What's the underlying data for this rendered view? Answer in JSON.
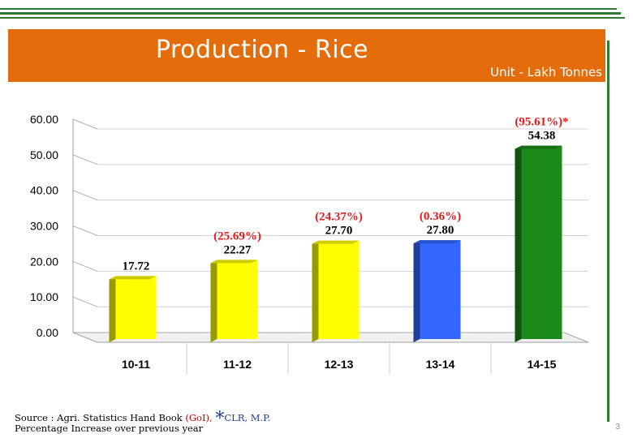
{
  "header": {
    "title": "Production - Rice",
    "unit": "Unit - Lakh Tonnes"
  },
  "chart_data": {
    "type": "bar",
    "categories": [
      "10-11",
      "11-12",
      "12-13",
      "13-14",
      "14-15"
    ],
    "values": [
      17.72,
      22.27,
      27.7,
      27.8,
      54.38
    ],
    "value_labels": [
      "17.72",
      "22.27",
      "27.70",
      "27.80",
      "54.38"
    ],
    "pct_labels": [
      "",
      "(25.69%)",
      "(24.37%)",
      "(0.36%)",
      "(95.61%)*"
    ],
    "bar_colors": [
      "#ffff00",
      "#ffff00",
      "#ffff00",
      "#3366ff",
      "#1b8a1b"
    ],
    "y_ticks": [
      "0.00",
      "10.00",
      "20.00",
      "30.00",
      "40.00",
      "50.00",
      "60.00"
    ],
    "ylim": [
      0,
      60
    ],
    "grid": true,
    "title": "",
    "xlabel": "",
    "ylabel": ""
  },
  "footer": {
    "source_prefix": "Source : Agri. Statistics Hand Book ",
    "source_goi": "(GoI),",
    "asterisk": "*",
    "source_clr": "CLR, M.P.",
    "note": "Percentage Increase over previous year",
    "page_number": "3"
  },
  "colors": {
    "title_band": "#e46c0a",
    "pct_label": "#e31a1c",
    "border_green": "#2e7d32"
  }
}
